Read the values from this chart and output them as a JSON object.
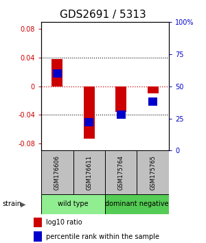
{
  "title": "GDS2691 / 5313",
  "samples": [
    "GSM176606",
    "GSM176611",
    "GSM175764",
    "GSM175765"
  ],
  "log10_ratio": [
    0.038,
    -0.073,
    -0.036,
    -0.01
  ],
  "percentile_rank": [
    0.6,
    0.22,
    0.28,
    0.38
  ],
  "bar_width": 0.35,
  "ylim": [
    -0.09,
    0.09
  ],
  "yticks": [
    -0.08,
    -0.04,
    0,
    0.04,
    0.08
  ],
  "y2ticks": [
    0,
    25,
    50,
    75,
    100
  ],
  "y2labels": [
    "0",
    "25",
    "50",
    "75",
    "100%"
  ],
  "groups": [
    {
      "label": "wild type",
      "samples": [
        0,
        1
      ],
      "color": "#90EE90"
    },
    {
      "label": "dominant negative",
      "samples": [
        2,
        3
      ],
      "color": "#55CC55"
    }
  ],
  "strain_label": "strain",
  "legend_red": "log10 ratio",
  "legend_blue": "percentile rank within the sample",
  "red_color": "#CC0000",
  "blue_color": "#0000CC",
  "dotted_zero_color": "#CC0000",
  "sample_box_color": "#C0C0C0",
  "title_fontsize": 11,
  "tick_fontsize": 7,
  "sample_fontsize": 6,
  "group_fontsize": 7,
  "legend_fontsize": 7
}
